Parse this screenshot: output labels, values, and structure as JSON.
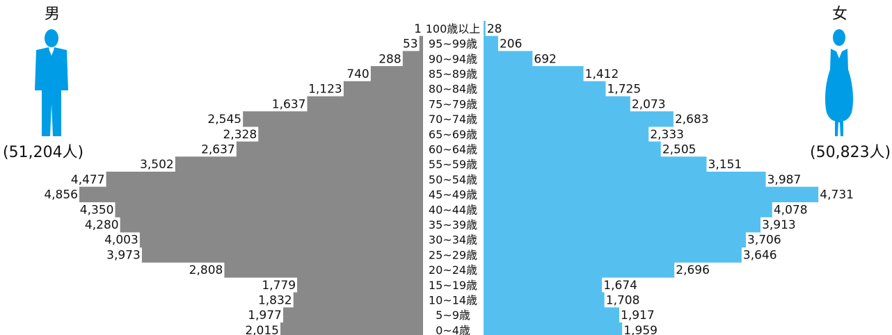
{
  "male": {
    "title": "男",
    "total": "(51,204人)"
  },
  "female": {
    "title": "女",
    "total": "(50,823人)"
  },
  "colors": {
    "male": "#898989",
    "female": "#55c0f0",
    "icon": "#009de6",
    "text": "#111111"
  },
  "icons": {
    "male": "man-figure-icon",
    "female": "woman-figure-icon"
  },
  "chart_data": {
    "type": "bar",
    "orientation": "horizontal",
    "layout": "population-pyramid",
    "categories": [
      "100歳以上",
      "95~99歳",
      "90~94歳",
      "85~89歳",
      "80~84歳",
      "75~79歳",
      "70~74歳",
      "65~69歳",
      "60~64歳",
      "55~59歳",
      "50~54歳",
      "45~49歳",
      "40~44歳",
      "35~39歳",
      "30~34歳",
      "25~29歳",
      "20~24歳",
      "15~19歳",
      "10~14歳",
      "5~9歳",
      "0~4歳"
    ],
    "series": [
      {
        "name": "男",
        "values": [
          1,
          53,
          288,
          740,
          1123,
          1637,
          2545,
          2328,
          2637,
          3502,
          4477,
          4856,
          4350,
          4280,
          4003,
          3973,
          2808,
          1779,
          1832,
          1977,
          2015
        ],
        "labels": [
          "1",
          "53",
          "288",
          "740",
          "1,123",
          "1,637",
          "2,545",
          "2,328",
          "2,637",
          "3,502",
          "4,477",
          "4,856",
          "4,350",
          "4,280",
          "4,003",
          "3,973",
          "2,808",
          "1,779",
          "1,832",
          "1,977",
          "2,015"
        ]
      },
      {
        "name": "女",
        "values": [
          28,
          206,
          692,
          1412,
          1725,
          2073,
          2683,
          2333,
          2505,
          3151,
          3987,
          4731,
          4078,
          3913,
          3706,
          3646,
          2696,
          1674,
          1708,
          1917,
          1959
        ],
        "labels": [
          "28",
          "206",
          "692",
          "1,412",
          "1,725",
          "2,073",
          "2,683",
          "2,333",
          "2,505",
          "3,151",
          "3,987",
          "4,731",
          "4,078",
          "3,913",
          "3,706",
          "3,646",
          "2,696",
          "1,674",
          "1,708",
          "1,917",
          "1,959"
        ]
      }
    ],
    "xlim": [
      0,
      4856
    ],
    "grid": false,
    "legend": "none"
  }
}
